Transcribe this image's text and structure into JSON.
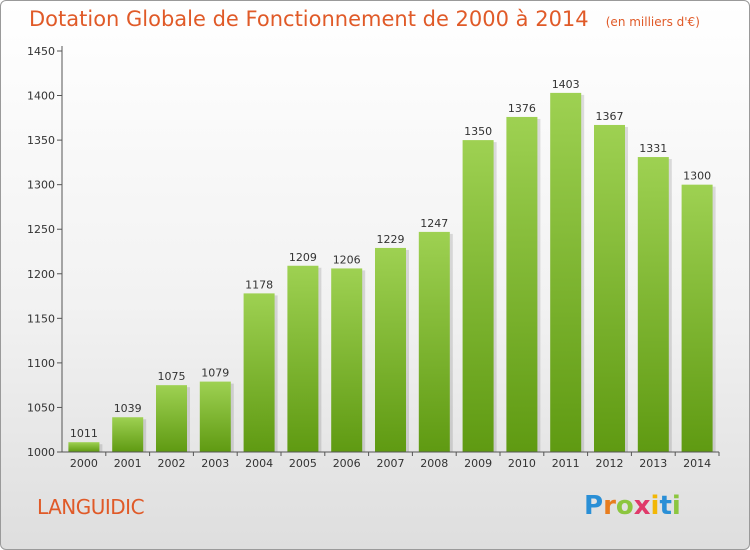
{
  "title": "Dotation Globale de Fonctionnement de 2000 à 2014",
  "unit_note": "(en milliers d'€)",
  "commune": "LANGUIDIC",
  "logo": {
    "text": "Proxiti",
    "letters": [
      {
        "ch": "P",
        "color": "#2a8fd6"
      },
      {
        "ch": "r",
        "color": "#e87d1e"
      },
      {
        "ch": "o",
        "color": "#8cc63f"
      },
      {
        "ch": "x",
        "color": "#e03a6a"
      },
      {
        "ch": "i",
        "color": "#f2b705"
      },
      {
        "ch": "t",
        "color": "#2a8fd6"
      },
      {
        "ch": "i",
        "color": "#8cc63f"
      }
    ]
  },
  "colors": {
    "accent": "#e05a28",
    "bar_top": "#9ed152",
    "bar_bottom": "#5f9a12",
    "axis": "#555555",
    "grid": "#d8d8d8"
  },
  "chart_data": {
    "type": "bar",
    "categories": [
      "2000",
      "2001",
      "2002",
      "2003",
      "2004",
      "2005",
      "2006",
      "2007",
      "2008",
      "2009",
      "2010",
      "2011",
      "2012",
      "2013",
      "2014"
    ],
    "values": [
      1011,
      1039,
      1075,
      1079,
      1178,
      1209,
      1206,
      1229,
      1247,
      1350,
      1376,
      1403,
      1367,
      1331,
      1300
    ],
    "ylim": [
      1000,
      1450
    ],
    "yticks": [
      1000,
      1050,
      1100,
      1150,
      1200,
      1250,
      1300,
      1350,
      1400,
      1450
    ],
    "grid": false,
    "data_labels": true
  }
}
